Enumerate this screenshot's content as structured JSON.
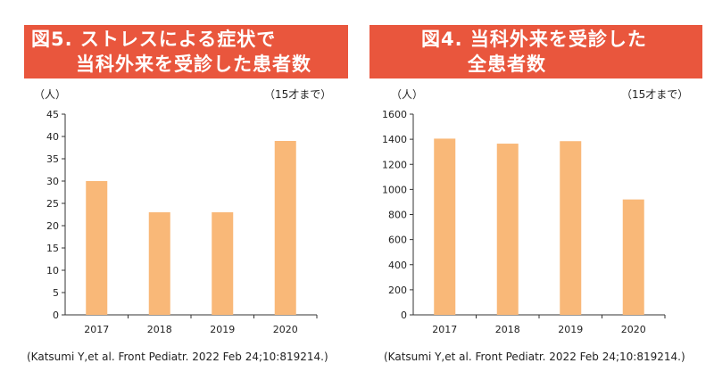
{
  "colors": {
    "title_bg": "#e9563d",
    "bar": "#f9b878",
    "axis": "#333333",
    "title_text": "#ffffff"
  },
  "chart_data": [
    {
      "type": "bar",
      "title_lines": [
        "図5. ストレスによる症状で",
        "当科外来を受診した患者数"
      ],
      "unit": "（人）",
      "note": "（15才まで）",
      "categories": [
        "2017",
        "2018",
        "2019",
        "2020"
      ],
      "values": [
        30,
        23,
        23,
        39
      ],
      "ylim": [
        0,
        45
      ],
      "yticks": [
        0,
        5,
        10,
        15,
        20,
        25,
        30,
        35,
        40,
        45
      ],
      "grid": false,
      "source": "(Katsumi Y,et al. Front Pediatr. 2022 Feb 24;10:819214.)"
    },
    {
      "type": "bar",
      "title_lines": [
        "図4. 当科外来を受診した",
        "全患者数"
      ],
      "unit": "（人）",
      "note": "（15才まで）",
      "categories": [
        "2017",
        "2018",
        "2019",
        "2020"
      ],
      "values": [
        1405,
        1365,
        1385,
        920
      ],
      "ylim": [
        0,
        1600
      ],
      "yticks": [
        0,
        200,
        400,
        600,
        800,
        1000,
        1200,
        1400,
        1600
      ],
      "grid": false,
      "source": "(Katsumi Y,et al. Front Pediatr. 2022 Feb 24;10:819214.)"
    }
  ]
}
